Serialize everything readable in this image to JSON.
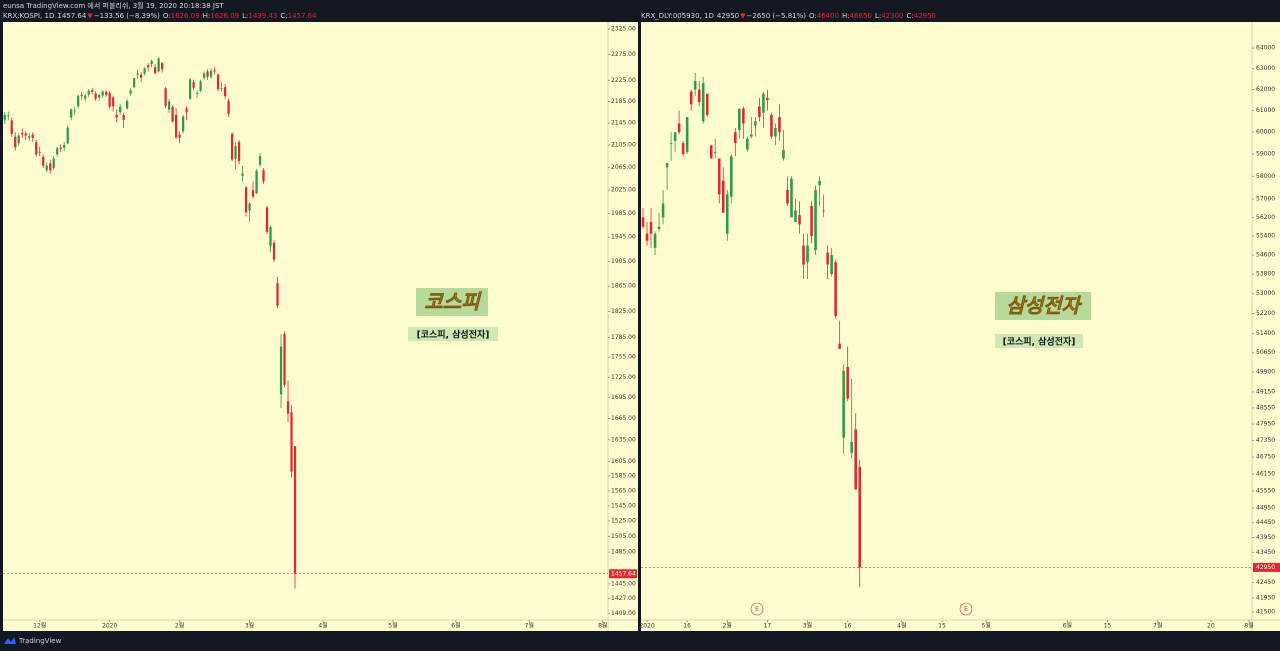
{
  "header": {
    "text": "eunsa TradingView.com 에서 퍼블리쉬, 3월 19, 2020 20:18:38 JST"
  },
  "footer": {
    "brand": "TradingView"
  },
  "chart_data": [
    {
      "type": "candlestick",
      "symbol": "KRX:KOSPI, 1D",
      "change_arrow": "▼",
      "change_text": "−133.56 (−8.39%)",
      "ohlc_prefixes": [
        "O:",
        "H:",
        "L:",
        "C:"
      ],
      "annotation_title": "코스피",
      "annotation_subtitle": "[코스피, 삼성전자]",
      "up_color": "#2e9a44",
      "down_color": "#e0282e",
      "log_scale": true,
      "price_line": true,
      "ylim": [
        1401,
        2339
      ],
      "yticks": [
        {
          "value": 2325,
          "label": "2325.00"
        },
        {
          "value": 2275,
          "label": "2275.00"
        },
        {
          "value": 2225,
          "label": "2225.00"
        },
        {
          "value": 2185,
          "label": "2185.00"
        },
        {
          "value": 2145,
          "label": "2145.00"
        },
        {
          "value": 2105,
          "label": "2105.00"
        },
        {
          "value": 2065,
          "label": "2065.00"
        },
        {
          "value": 2025,
          "label": "2025.00"
        },
        {
          "value": 1985,
          "label": "1985.00"
        },
        {
          "value": 1945,
          "label": "1945.00"
        },
        {
          "value": 1905,
          "label": "1905.00"
        },
        {
          "value": 1865,
          "label": "1865.00"
        },
        {
          "value": 1825,
          "label": "1825.00"
        },
        {
          "value": 1785,
          "label": "1785.00"
        },
        {
          "value": 1755,
          "label": "1755.00"
        },
        {
          "value": 1725,
          "label": "1725.00"
        },
        {
          "value": 1695,
          "label": "1695.00"
        },
        {
          "value": 1665,
          "label": "1665.00"
        },
        {
          "value": 1635,
          "label": "1635.00"
        },
        {
          "value": 1605,
          "label": "1605.00"
        },
        {
          "value": 1585,
          "label": "1585.00"
        },
        {
          "value": 1565,
          "label": "1565.00"
        },
        {
          "value": 1545,
          "label": "1545.00"
        },
        {
          "value": 1525,
          "label": "1525.00"
        },
        {
          "value": 1505,
          "label": "1505.00"
        },
        {
          "value": 1485,
          "label": "1485.00"
        },
        {
          "value": 1445,
          "label": "1445.00"
        },
        {
          "value": 1427,
          "label": "1427.00"
        },
        {
          "value": 1409,
          "label": "1409.00"
        }
      ],
      "xlim": [
        -0.5,
        172.5
      ],
      "xticks": [
        {
          "value": 10,
          "label": "12월"
        },
        {
          "value": 30,
          "label": "2020"
        },
        {
          "value": 50,
          "label": "2월"
        },
        {
          "value": 70,
          "label": "3월"
        },
        {
          "value": 91,
          "label": "4월"
        },
        {
          "value": 111,
          "label": "5월"
        },
        {
          "value": 129,
          "label": "6월"
        },
        {
          "value": 150,
          "label": "7월"
        },
        {
          "value": 171,
          "label": "8월"
        }
      ],
      "ohlc": [
        [
          2150,
          2165,
          2143,
          2160
        ],
        [
          2158,
          2166,
          2150,
          2159
        ],
        [
          2150,
          2155,
          2120,
          2125
        ],
        [
          2120,
          2128,
          2095,
          2101
        ],
        [
          2108,
          2126,
          2104,
          2122
        ],
        [
          2127,
          2135,
          2118,
          2124
        ],
        [
          2126,
          2130,
          2114,
          2122
        ],
        [
          2118,
          2127,
          2112,
          2121
        ],
        [
          2124,
          2128,
          2110,
          2118
        ],
        [
          2110,
          2114,
          2084,
          2088
        ],
        [
          2092,
          2102,
          2085,
          2091
        ],
        [
          2084,
          2088,
          2064,
          2068
        ],
        [
          2060,
          2074,
          2056,
          2068
        ],
        [
          2072,
          2078,
          2054,
          2060
        ],
        [
          2064,
          2085,
          2060,
          2081
        ],
        [
          2088,
          2102,
          2084,
          2099
        ],
        [
          2100,
          2106,
          2092,
          2098
        ],
        [
          2100,
          2110,
          2094,
          2105
        ],
        [
          2108,
          2140,
          2106,
          2137
        ],
        [
          2155,
          2172,
          2150,
          2170
        ],
        [
          2168,
          2175,
          2160,
          2168
        ],
        [
          2176,
          2198,
          2172,
          2195
        ],
        [
          2197,
          2203,
          2188,
          2195
        ],
        [
          2190,
          2200,
          2185,
          2196
        ],
        [
          2198,
          2208,
          2194,
          2205
        ],
        [
          2206,
          2210,
          2198,
          2203
        ],
        [
          2200,
          2204,
          2186,
          2190
        ],
        [
          2192,
          2200,
          2186,
          2197
        ],
        [
          2196,
          2206,
          2192,
          2204
        ],
        [
          2203,
          2206,
          2194,
          2197
        ],
        [
          2201,
          2204,
          2172,
          2175
        ],
        [
          2192,
          2196,
          2166,
          2176
        ],
        [
          2160,
          2170,
          2146,
          2155
        ],
        [
          2165,
          2180,
          2160,
          2175
        ],
        [
          2160,
          2164,
          2136,
          2151
        ],
        [
          2172,
          2190,
          2170,
          2186
        ],
        [
          2200,
          2210,
          2196,
          2206
        ],
        [
          2212,
          2230,
          2210,
          2229
        ],
        [
          2236,
          2245,
          2228,
          2238
        ],
        [
          2236,
          2240,
          2222,
          2230
        ],
        [
          2238,
          2250,
          2234,
          2248
        ],
        [
          2254,
          2258,
          2242,
          2250
        ],
        [
          2256,
          2265,
          2250,
          2262
        ],
        [
          2250,
          2256,
          2236,
          2239
        ],
        [
          2242,
          2270,
          2240,
          2267
        ],
        [
          2258,
          2260,
          2240,
          2246
        ],
        [
          2210,
          2212,
          2173,
          2176
        ],
        [
          2170,
          2190,
          2164,
          2185
        ],
        [
          2175,
          2178,
          2146,
          2148
        ],
        [
          2160,
          2172,
          2116,
          2119
        ],
        [
          2124,
          2130,
          2108,
          2118
        ],
        [
          2130,
          2160,
          2126,
          2157
        ],
        [
          2172,
          2176,
          2150,
          2165
        ],
        [
          2190,
          2230,
          2188,
          2227
        ],
        [
          2222,
          2226,
          2206,
          2211
        ],
        [
          2200,
          2206,
          2192,
          2201
        ],
        [
          2205,
          2226,
          2202,
          2223
        ],
        [
          2230,
          2242,
          2226,
          2238
        ],
        [
          2242,
          2246,
          2226,
          2232
        ],
        [
          2232,
          2248,
          2228,
          2243
        ],
        [
          2244,
          2250,
          2236,
          2242
        ],
        [
          2236,
          2238,
          2204,
          2208
        ],
        [
          2210,
          2222,
          2204,
          2210
        ],
        [
          2212,
          2218,
          2190,
          2195
        ],
        [
          2186,
          2190,
          2156,
          2162
        ],
        [
          2125,
          2128,
          2076,
          2079
        ],
        [
          2080,
          2110,
          2062,
          2103
        ],
        [
          2110,
          2114,
          2070,
          2076
        ],
        [
          2050,
          2068,
          2040,
          2054
        ],
        [
          2030,
          2032,
          1980,
          1987
        ],
        [
          1990,
          2005,
          1970,
          2002
        ],
        [
          2025,
          2040,
          2010,
          2014
        ],
        [
          2020,
          2062,
          2018,
          2059
        ],
        [
          2070,
          2090,
          2065,
          2085
        ],
        [
          2060,
          2064,
          2036,
          2040
        ],
        [
          1995,
          1998,
          1950,
          1954
        ],
        [
          1930,
          1965,
          1920,
          1962
        ],
        [
          1936,
          1940,
          1904,
          1908
        ],
        [
          1870,
          1880,
          1830,
          1834
        ],
        [
          1700,
          1790,
          1680,
          1771
        ],
        [
          1790,
          1794,
          1710,
          1714
        ],
        [
          1690,
          1720,
          1660,
          1672
        ],
        [
          1674,
          1684,
          1583,
          1591
        ],
        [
          1626.09,
          1626.09,
          1439.43,
          1457.64
        ]
      ]
    },
    {
      "type": "candlestick",
      "symbol": "KRX_DLY:005930, 1D",
      "change_arrow": "▼",
      "change_text": "−2650 (−5.81%)",
      "ohlc_prefixes": [
        "O:",
        "H:",
        "L:",
        "C:"
      ],
      "annotation_title": "삼성전자",
      "annotation_subtitle": "[코스피, 삼성전자]",
      "earnings_marker": "E",
      "up_color": "#2e9a44",
      "down_color": "#e0282e",
      "log_scale": true,
      "price_line": true,
      "ylim": [
        41250,
        65300
      ],
      "yticks": [
        64000,
        63000,
        62000,
        61000,
        60000,
        59000,
        58000,
        57000,
        56200,
        55400,
        54600,
        53800,
        53000,
        52200,
        51400,
        50650,
        49900,
        49150,
        48550,
        47950,
        47350,
        46750,
        46150,
        45550,
        44950,
        44450,
        43950,
        43450,
        42450,
        41950,
        41500
      ],
      "xlim": [
        -0.5,
        151.75
      ],
      "xticks": [
        {
          "value": 1,
          "label": "2020"
        },
        {
          "value": 11,
          "label": "16"
        },
        {
          "value": 21,
          "label": "2월"
        },
        {
          "value": 31,
          "label": "17"
        },
        {
          "value": 41,
          "label": "3월"
        },
        {
          "value": 51,
          "label": "16"
        },
        {
          "value": 64.5,
          "label": "4월"
        },
        {
          "value": 74.5,
          "label": "15"
        },
        {
          "value": 85.5,
          "label": "5월"
        },
        {
          "value": 105.75,
          "label": "6월"
        },
        {
          "value": 115.75,
          "label": "15"
        },
        {
          "value": 128.25,
          "label": "7월"
        },
        {
          "value": 141.5,
          "label": "20"
        },
        {
          "value": 151,
          "label": "8월"
        }
      ],
      "ohlc": [
        [
          56200,
          56600,
          55700,
          55800
        ],
        [
          55500,
          56000,
          55000,
          55200
        ],
        [
          56000,
          56600,
          54900,
          55500
        ],
        [
          54900,
          55600,
          54600,
          55500
        ],
        [
          55700,
          56400,
          55600,
          55800
        ],
        [
          56200,
          57400,
          55900,
          56800
        ],
        [
          58400,
          58600,
          57400,
          58600
        ],
        [
          59500,
          60000,
          58700,
          59500
        ],
        [
          59600,
          60000,
          59100,
          60000
        ],
        [
          60400,
          61000,
          59900,
          60000
        ],
        [
          59500,
          59600,
          58900,
          59000
        ],
        [
          59100,
          60700,
          59000,
          60700
        ],
        [
          61900,
          62000,
          61000,
          61300
        ],
        [
          62000,
          62800,
          61700,
          62400
        ],
        [
          62000,
          62400,
          61200,
          61400
        ],
        [
          60500,
          62600,
          60400,
          62300
        ],
        [
          61800,
          61800,
          60700,
          60800
        ],
        [
          59400,
          59400,
          58800,
          58800
        ],
        [
          59100,
          59700,
          58800,
          59100
        ],
        [
          58800,
          58800,
          56800,
          57200
        ],
        [
          57800,
          58400,
          56400,
          56400
        ],
        [
          55500,
          57400,
          55200,
          57200
        ],
        [
          57100,
          59000,
          56800,
          58900
        ],
        [
          60000,
          60200,
          58900,
          59500
        ],
        [
          60100,
          61100,
          59700,
          61100
        ],
        [
          61100,
          61200,
          59700,
          60400
        ],
        [
          59200,
          59800,
          59100,
          59700
        ],
        [
          59800,
          60700,
          59700,
          59900
        ],
        [
          60300,
          60700,
          59800,
          60500
        ],
        [
          61200,
          61600,
          60500,
          60700
        ],
        [
          60900,
          61900,
          60200,
          61800
        ],
        [
          61600,
          62000,
          61000,
          61500
        ],
        [
          60800,
          60900,
          59700,
          59800
        ],
        [
          59800,
          60400,
          59400,
          60200
        ],
        [
          60700,
          61300,
          59600,
          60000
        ],
        [
          58800,
          60100,
          58700,
          59200
        ],
        [
          57400,
          58000,
          56700,
          56800
        ],
        [
          56200,
          58000,
          56200,
          57900
        ],
        [
          56000,
          57000,
          56000,
          56500
        ],
        [
          56300,
          56900,
          55500,
          55900
        ],
        [
          55000,
          55500,
          53600,
          54200
        ],
        [
          54300,
          55500,
          53600,
          55000
        ],
        [
          56700,
          56900,
          55100,
          55400
        ],
        [
          54800,
          57600,
          54600,
          57400
        ],
        [
          57600,
          58000,
          56700,
          57800
        ],
        [
          56500,
          57200,
          56200,
          56500
        ],
        [
          54700,
          55000,
          53600,
          54200
        ],
        [
          53800,
          54900,
          53700,
          54600
        ],
        [
          54300,
          54400,
          52000,
          52100
        ],
        [
          51000,
          51900,
          50800,
          50800
        ],
        [
          47450,
          50200,
          46850,
          49950
        ],
        [
          50100,
          50900,
          48800,
          48900
        ],
        [
          46900,
          49650,
          46700,
          47300
        ],
        [
          47750,
          48350,
          45600,
          45600
        ],
        [
          46400,
          46650,
          42300,
          42950
        ]
      ]
    }
  ]
}
